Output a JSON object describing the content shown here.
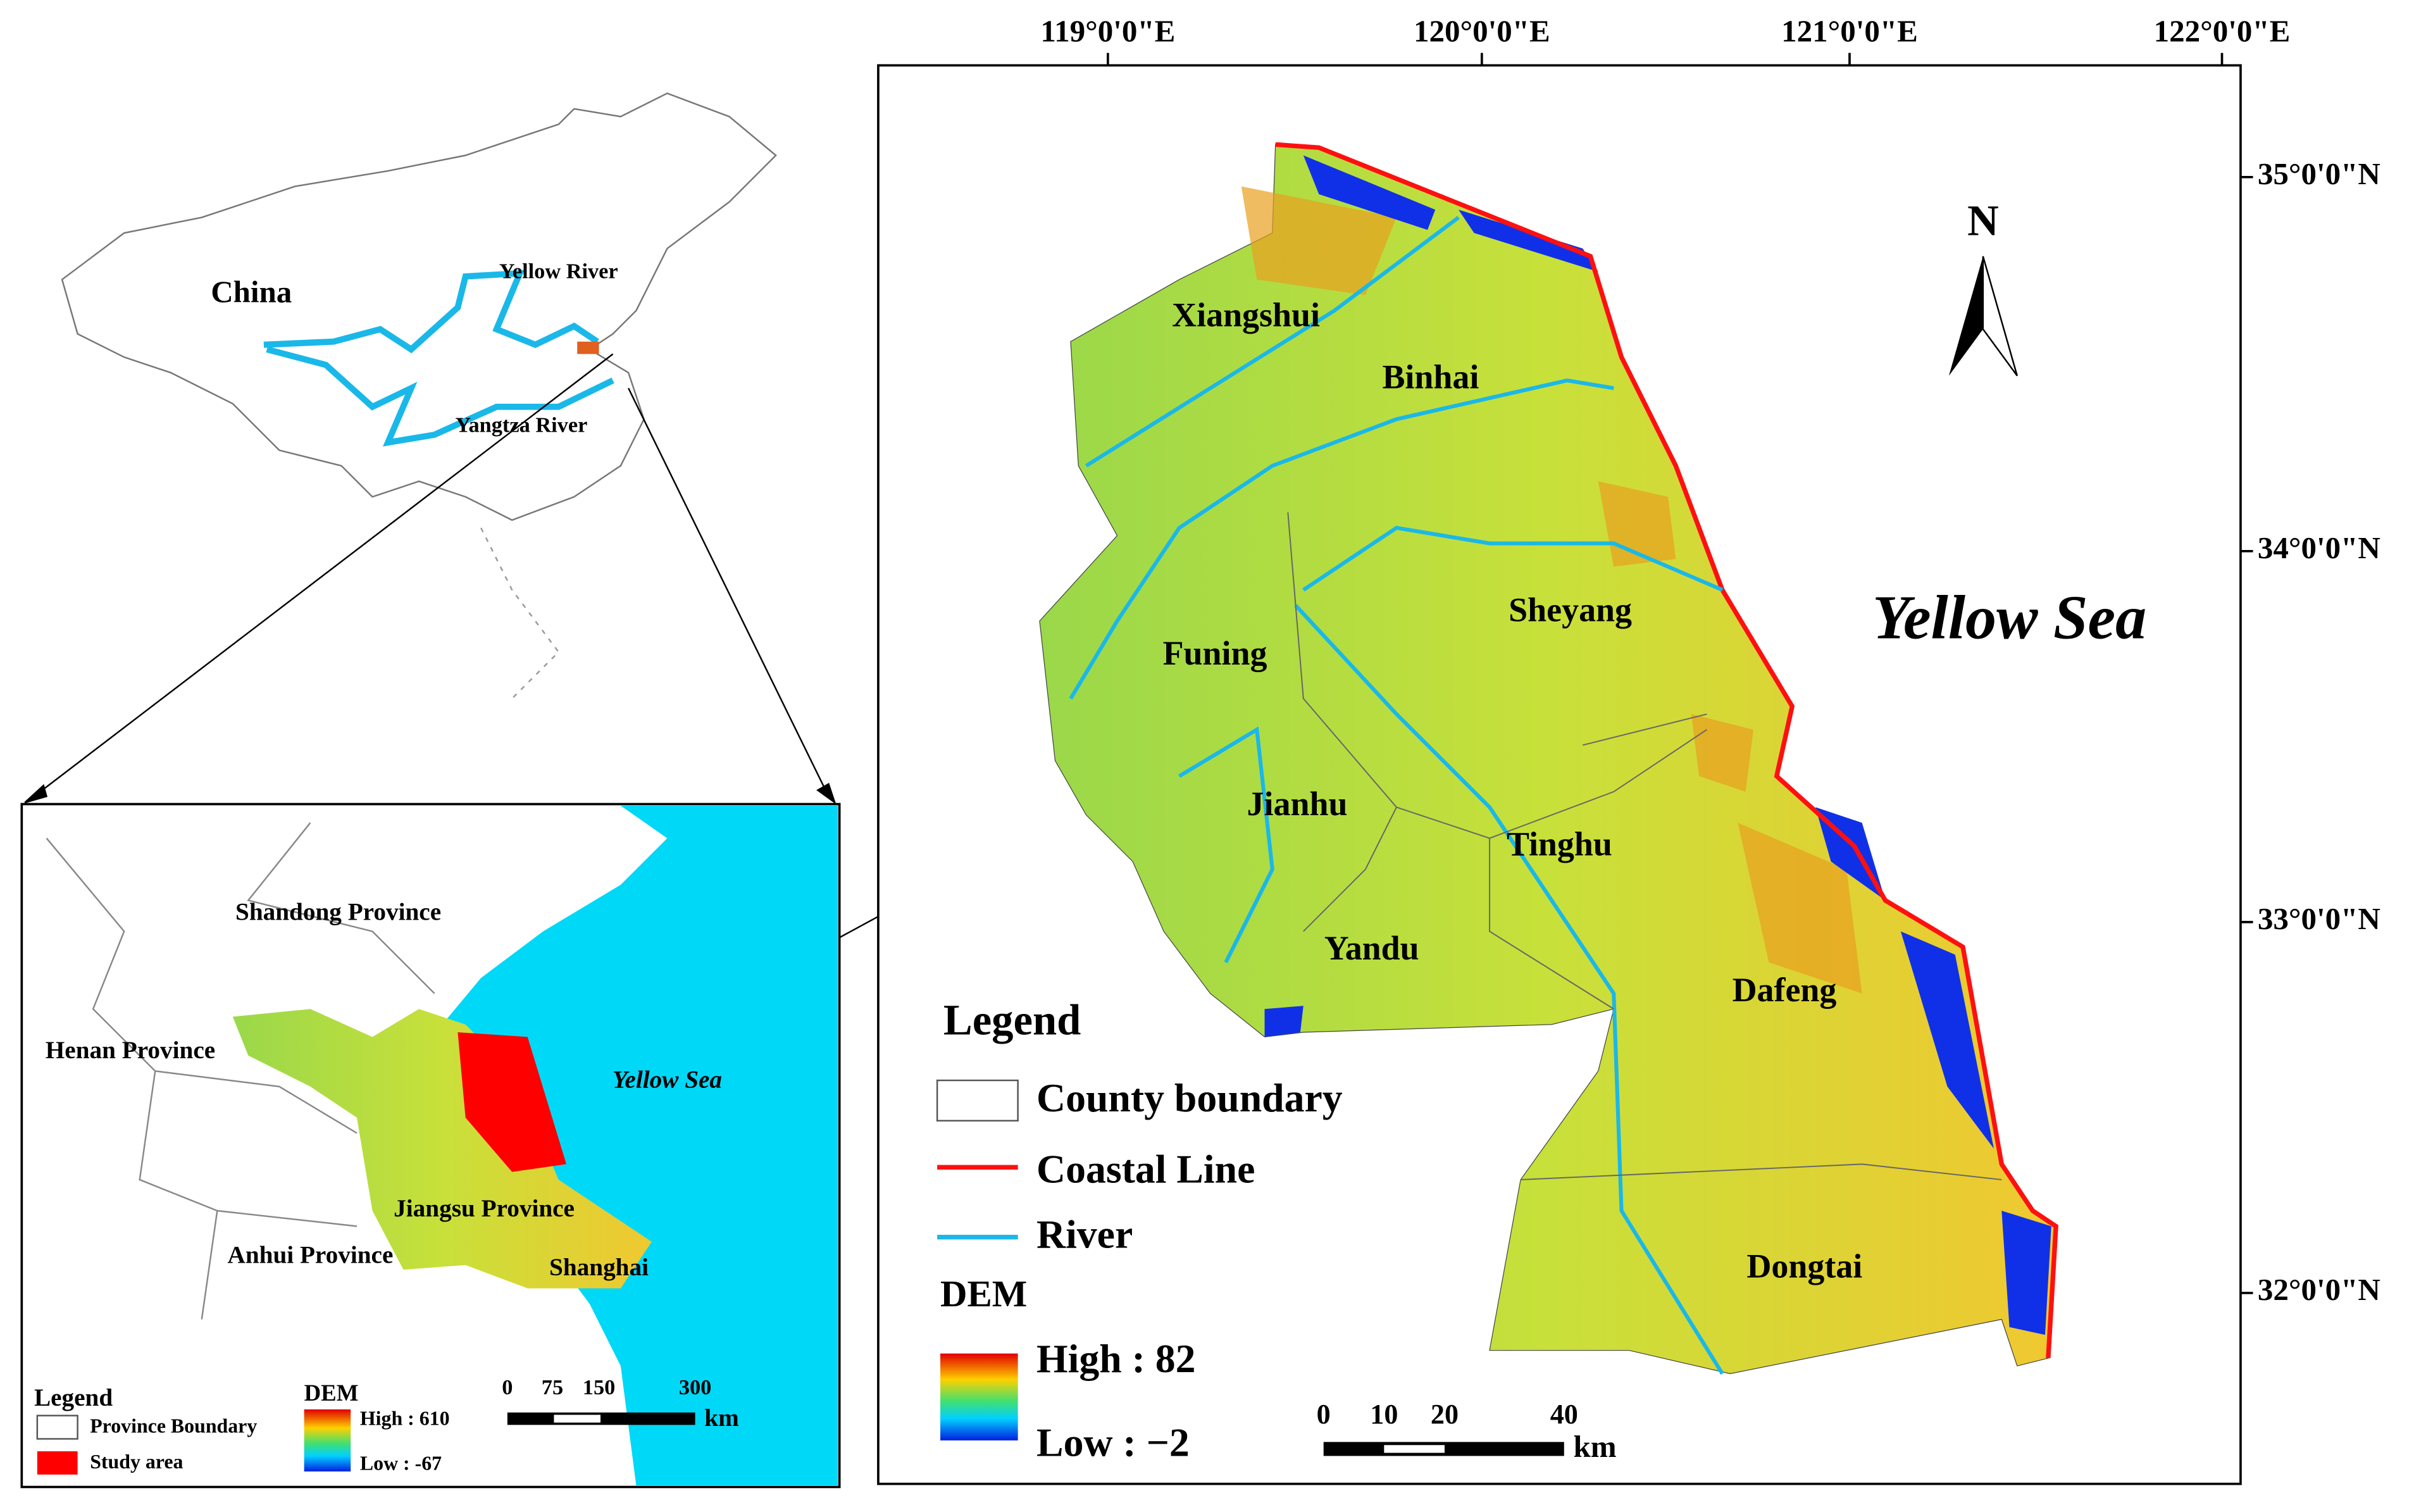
{
  "main_map": {
    "lon_labels": [
      "119°0'0\"E",
      "120°0'0\"E",
      "121°0'0\"E",
      "122°0'0\"E"
    ],
    "lat_labels": [
      "35°0'0\"N",
      "34°0'0\"N",
      "33°0'0\"N",
      "32°0'0\"N"
    ],
    "north": "N",
    "sea_label": "Yellow Sea",
    "counties": [
      "Xiangshui",
      "Binhai",
      "Sheyang",
      "Funing",
      "Jianhu",
      "Tinghu",
      "Yandu",
      "Dafeng",
      "Dongtai"
    ],
    "legend": {
      "title": "Legend",
      "items": [
        "County boundary",
        "Coastal Line",
        "River"
      ],
      "dem_title": "DEM",
      "high": "High : 82",
      "low": "Low : −2"
    },
    "scale": {
      "ticks": [
        "0",
        "10",
        "20",
        "40"
      ],
      "unit": "km"
    }
  },
  "china_map": {
    "country": "China",
    "rivers": [
      "Yellow River",
      "Yangtza River"
    ]
  },
  "region_map": {
    "labels": [
      "Shandong Province",
      "Henan Province",
      "Yellow Sea",
      "Jiangsu Province",
      "Anhui Province",
      "Shanghai"
    ],
    "legend": {
      "title": "Legend",
      "items": [
        "Province Boundary",
        "Study area"
      ],
      "dem_title": "DEM",
      "high": "High : 610",
      "low": "Low : -67"
    },
    "scale": {
      "ticks": [
        "0",
        "75",
        "150",
        "300"
      ],
      "unit": "km"
    }
  }
}
